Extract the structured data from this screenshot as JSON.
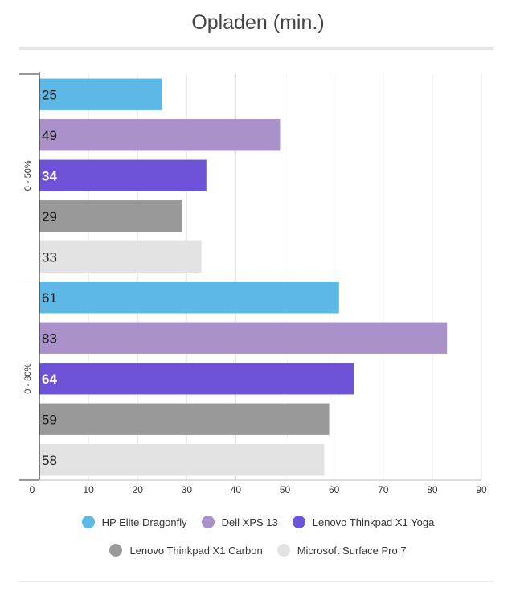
{
  "chart_data": {
    "type": "bar",
    "orientation": "horizontal",
    "title": "Opladen (min.)",
    "groups": [
      "0 - 50%",
      "0 - 80%"
    ],
    "series": [
      {
        "name": "HP Elite Dragonfly",
        "color": "#5db8e5",
        "label_color": "#1a1a1a",
        "values": [
          25,
          61
        ]
      },
      {
        "name": "Dell XPS 13",
        "color": "#ab91ca",
        "label_color": "#1a1a1a",
        "values": [
          49,
          83
        ]
      },
      {
        "name": "Lenovo Thinkpad X1 Yoga",
        "color": "#6d52d8",
        "label_color": "#ffffff",
        "values": [
          34,
          64
        ]
      },
      {
        "name": "Lenovo Thinkpad X1 Carbon",
        "color": "#999999",
        "label_color": "#1a1a1a",
        "values": [
          29,
          59
        ]
      },
      {
        "name": "Microsoft Surface Pro 7",
        "color": "#e3e3e3",
        "label_color": "#1a1a1a",
        "values": [
          33,
          58
        ]
      }
    ],
    "xlim": [
      0,
      90
    ],
    "x_ticks": [
      0,
      10,
      20,
      30,
      40,
      50,
      60,
      70,
      80,
      90
    ],
    "grid": true,
    "legend_position": "bottom"
  }
}
